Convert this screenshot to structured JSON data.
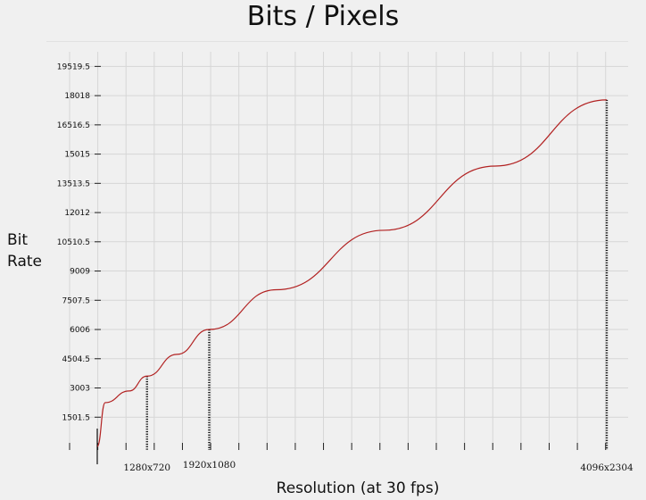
{
  "chart_data": {
    "type": "line",
    "title": "Bits / Pixels",
    "xlabel": "Resolution (at 30 fps)",
    "ylabel": "Bit Rate",
    "ylabel_lines": [
      "Bit",
      "Rate"
    ],
    "yticks": [
      "1501.5",
      "3003",
      "4504.5",
      "6006",
      "7507.5",
      "9009",
      "10510.5",
      "12012",
      "13513.5",
      "15015",
      "16516.5",
      "18018",
      "19519.5"
    ],
    "ylim": [
      0,
      20270
    ],
    "xlim": [
      0,
      9437184
    ],
    "grid": true,
    "line_color": "#b22222",
    "series": [
      {
        "x": [
          0,
          147456,
          589824,
          921600,
          1474560,
          2073600,
          3317760,
          5308416,
          7372800,
          9437184
        ],
        "y": [
          0,
          2250,
          2850,
          3610,
          4730,
          6006,
          8050,
          11100,
          14400,
          17800
        ]
      }
    ],
    "annotations": [
      {
        "label": "1280x720",
        "x": 921600,
        "y": 3610
      },
      {
        "label": "1920x1080",
        "x": 2073600,
        "y": 6006
      },
      {
        "label": "4096x2304",
        "x": 9437184,
        "y": 17800
      }
    ]
  }
}
